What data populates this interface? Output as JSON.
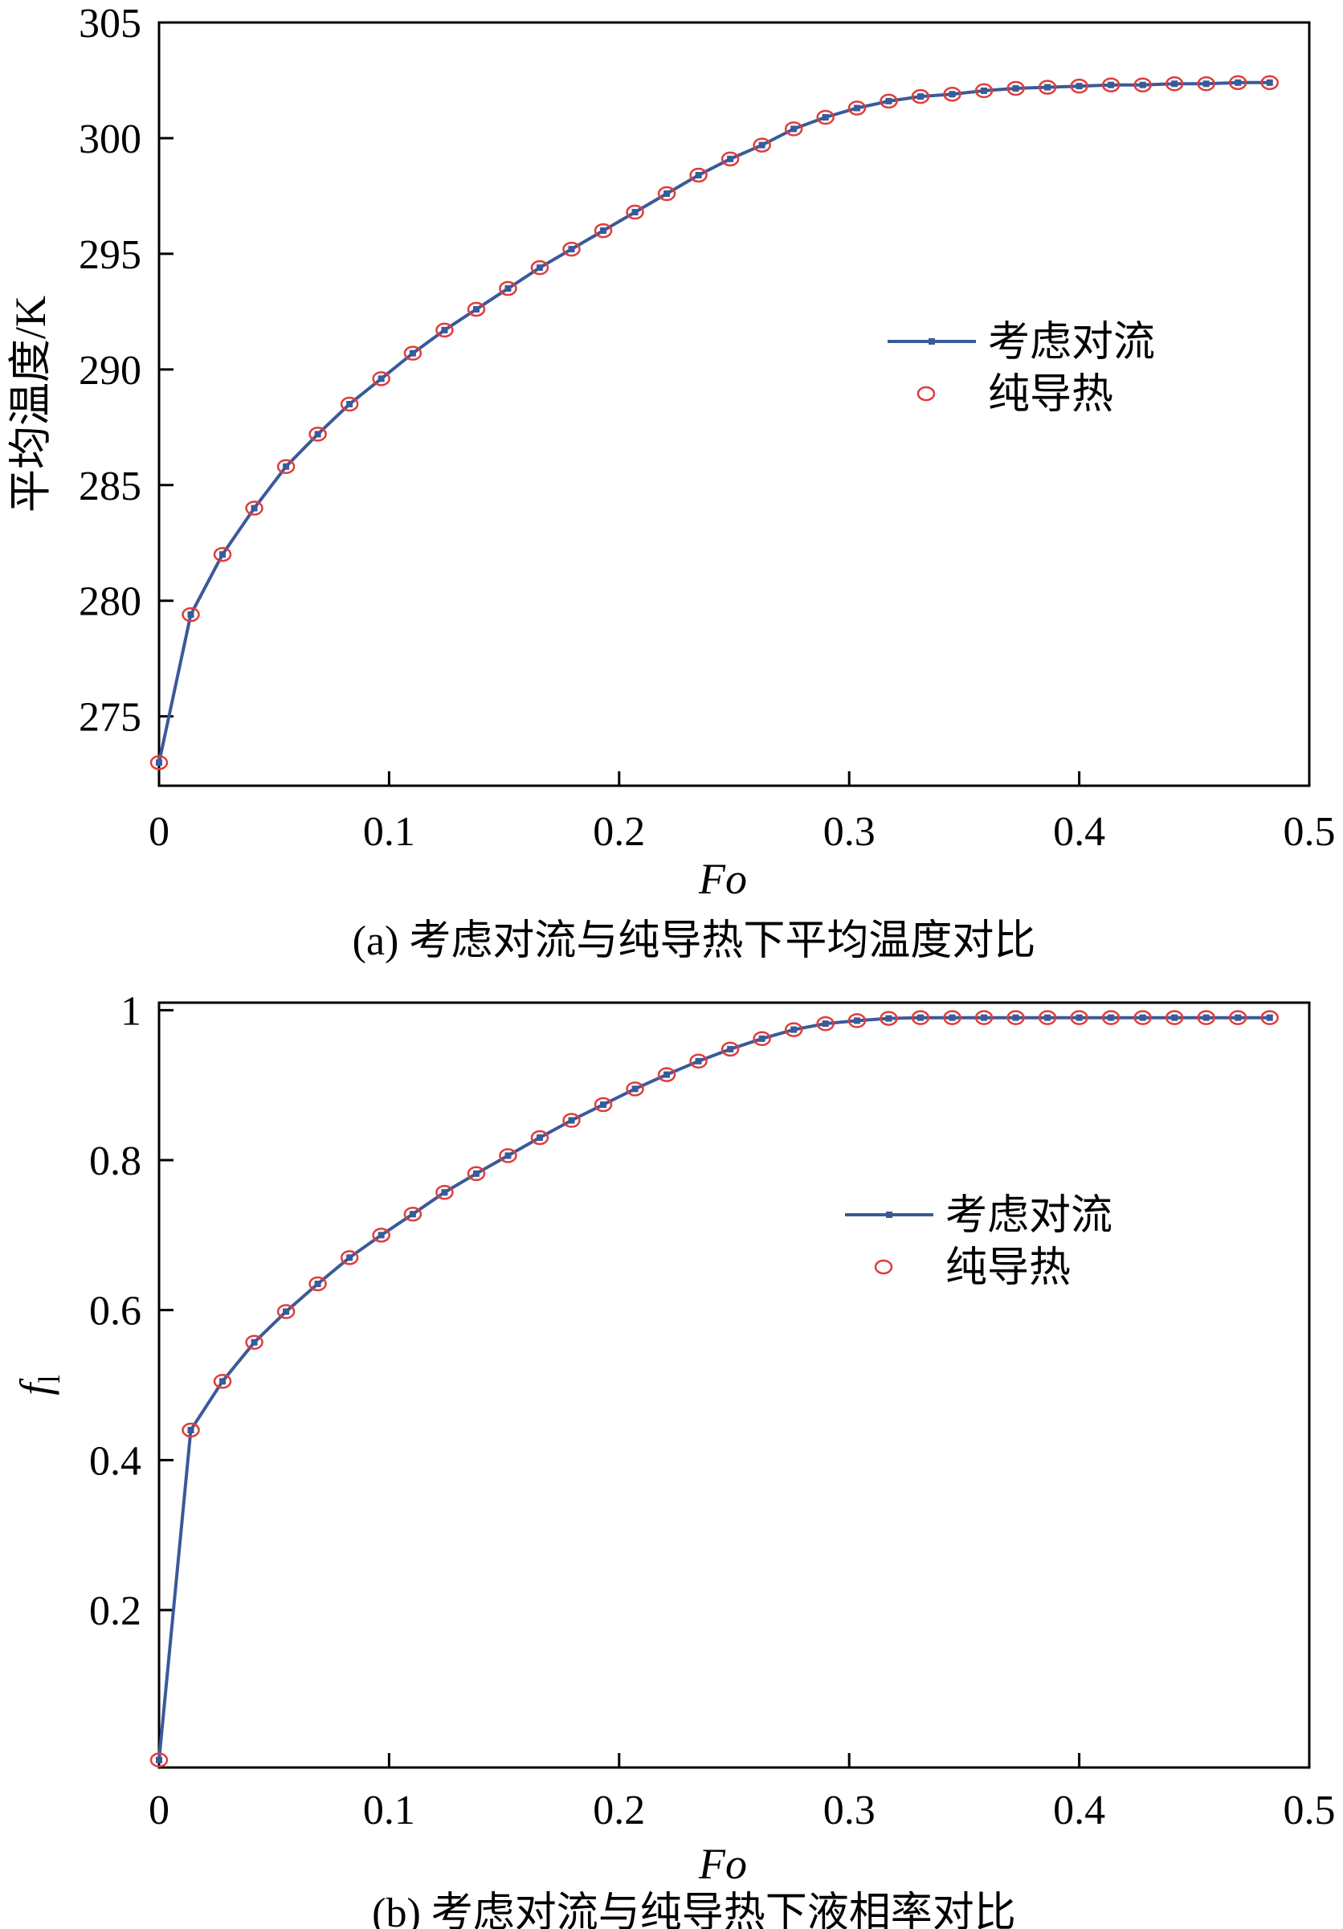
{
  "colors": {
    "line": "#3a5a98",
    "marker": "#e03c3c",
    "axis": "#000000",
    "background": "#ffffff"
  },
  "chart_data": [
    {
      "type": "line",
      "caption": "(a) 考虑对流与纯导热下平均温度对比",
      "xlabel": "Fo",
      "ylabel": "平均温度/K",
      "xlim": [
        0,
        0.5
      ],
      "ylim": [
        272,
        305
      ],
      "xticks": [
        0,
        0.1,
        0.2,
        0.3,
        0.4,
        0.5
      ],
      "xtick_labels": [
        "0",
        "0.1",
        "0.2",
        "0.3",
        "0.4",
        "0.5"
      ],
      "yticks": [
        275,
        280,
        285,
        290,
        295,
        300,
        305
      ],
      "ytick_labels": [
        "275",
        "280",
        "285",
        "290",
        "295",
        "300",
        "305"
      ],
      "legend_position": "center-right",
      "x": [
        0,
        0.0138,
        0.0276,
        0.0414,
        0.0552,
        0.069,
        0.0828,
        0.0966,
        0.1103,
        0.1241,
        0.1379,
        0.1517,
        0.1655,
        0.1793,
        0.1931,
        0.2069,
        0.2207,
        0.2345,
        0.2483,
        0.2621,
        0.2759,
        0.2897,
        0.3034,
        0.3172,
        0.331,
        0.3448,
        0.3586,
        0.3724,
        0.3862,
        0.4,
        0.4138,
        0.4276,
        0.4414,
        0.4552,
        0.469,
        0.4828
      ],
      "series": [
        {
          "name": "考虑对流",
          "style": "line-with-square-markers",
          "values": [
            273.0,
            279.4,
            282.0,
            284.0,
            285.8,
            287.2,
            288.5,
            289.6,
            290.7,
            291.7,
            292.6,
            293.5,
            294.4,
            295.2,
            296.0,
            296.8,
            297.6,
            298.4,
            299.1,
            299.7,
            300.4,
            300.9,
            301.3,
            301.6,
            301.8,
            301.9,
            302.05,
            302.15,
            302.2,
            302.25,
            302.3,
            302.3,
            302.35,
            302.35,
            302.4,
            302.4
          ]
        },
        {
          "name": "纯导热",
          "style": "open-circle-markers",
          "values": [
            273.0,
            279.4,
            282.0,
            284.0,
            285.8,
            287.2,
            288.5,
            289.6,
            290.7,
            291.7,
            292.6,
            293.5,
            294.4,
            295.2,
            296.0,
            296.8,
            297.6,
            298.4,
            299.1,
            299.7,
            300.4,
            300.9,
            301.3,
            301.6,
            301.8,
            301.9,
            302.05,
            302.15,
            302.2,
            302.25,
            302.3,
            302.3,
            302.35,
            302.35,
            302.4,
            302.4
          ]
        }
      ]
    },
    {
      "type": "line",
      "caption": "(b) 考虑对流与纯导热下液相率对比",
      "xlabel": "Fo",
      "ylabel": "f",
      "ylabel_sub": "l",
      "xlim": [
        0,
        0.5
      ],
      "ylim": [
        -0.01,
        1.01
      ],
      "xticks": [
        0,
        0.1,
        0.2,
        0.3,
        0.4,
        0.5
      ],
      "xtick_labels": [
        "0",
        "0.1",
        "0.2",
        "0.3",
        "0.4",
        "0.5"
      ],
      "yticks": [
        0.2,
        0.4,
        0.6,
        0.8,
        1
      ],
      "ytick_labels": [
        "0.2",
        "0.4",
        "0.6",
        "0.8",
        "1"
      ],
      "legend_position": "center-right",
      "x": [
        0,
        0.0138,
        0.0276,
        0.0414,
        0.0552,
        0.069,
        0.0828,
        0.0966,
        0.1103,
        0.1241,
        0.1379,
        0.1517,
        0.1655,
        0.1793,
        0.1931,
        0.2069,
        0.2207,
        0.2345,
        0.2483,
        0.2621,
        0.2759,
        0.2897,
        0.3034,
        0.3172,
        0.331,
        0.3448,
        0.3586,
        0.3724,
        0.3862,
        0.4,
        0.4138,
        0.4276,
        0.4414,
        0.4552,
        0.469,
        0.4828
      ],
      "series": [
        {
          "name": "考虑对流",
          "style": "line-with-square-markers",
          "values": [
            0.0,
            0.44,
            0.505,
            0.557,
            0.598,
            0.635,
            0.67,
            0.7,
            0.728,
            0.757,
            0.782,
            0.806,
            0.83,
            0.853,
            0.874,
            0.895,
            0.914,
            0.932,
            0.948,
            0.962,
            0.974,
            0.982,
            0.986,
            0.989,
            0.99,
            0.99,
            0.99,
            0.99,
            0.99,
            0.99,
            0.99,
            0.99,
            0.99,
            0.99,
            0.99,
            0.99
          ]
        },
        {
          "name": "纯导热",
          "style": "open-circle-markers",
          "values": [
            0.0,
            0.44,
            0.505,
            0.557,
            0.598,
            0.635,
            0.67,
            0.7,
            0.728,
            0.757,
            0.782,
            0.806,
            0.83,
            0.853,
            0.874,
            0.895,
            0.914,
            0.932,
            0.948,
            0.962,
            0.974,
            0.982,
            0.986,
            0.989,
            0.99,
            0.99,
            0.99,
            0.99,
            0.99,
            0.99,
            0.99,
            0.99,
            0.99,
            0.99,
            0.99,
            0.99
          ]
        }
      ]
    }
  ]
}
